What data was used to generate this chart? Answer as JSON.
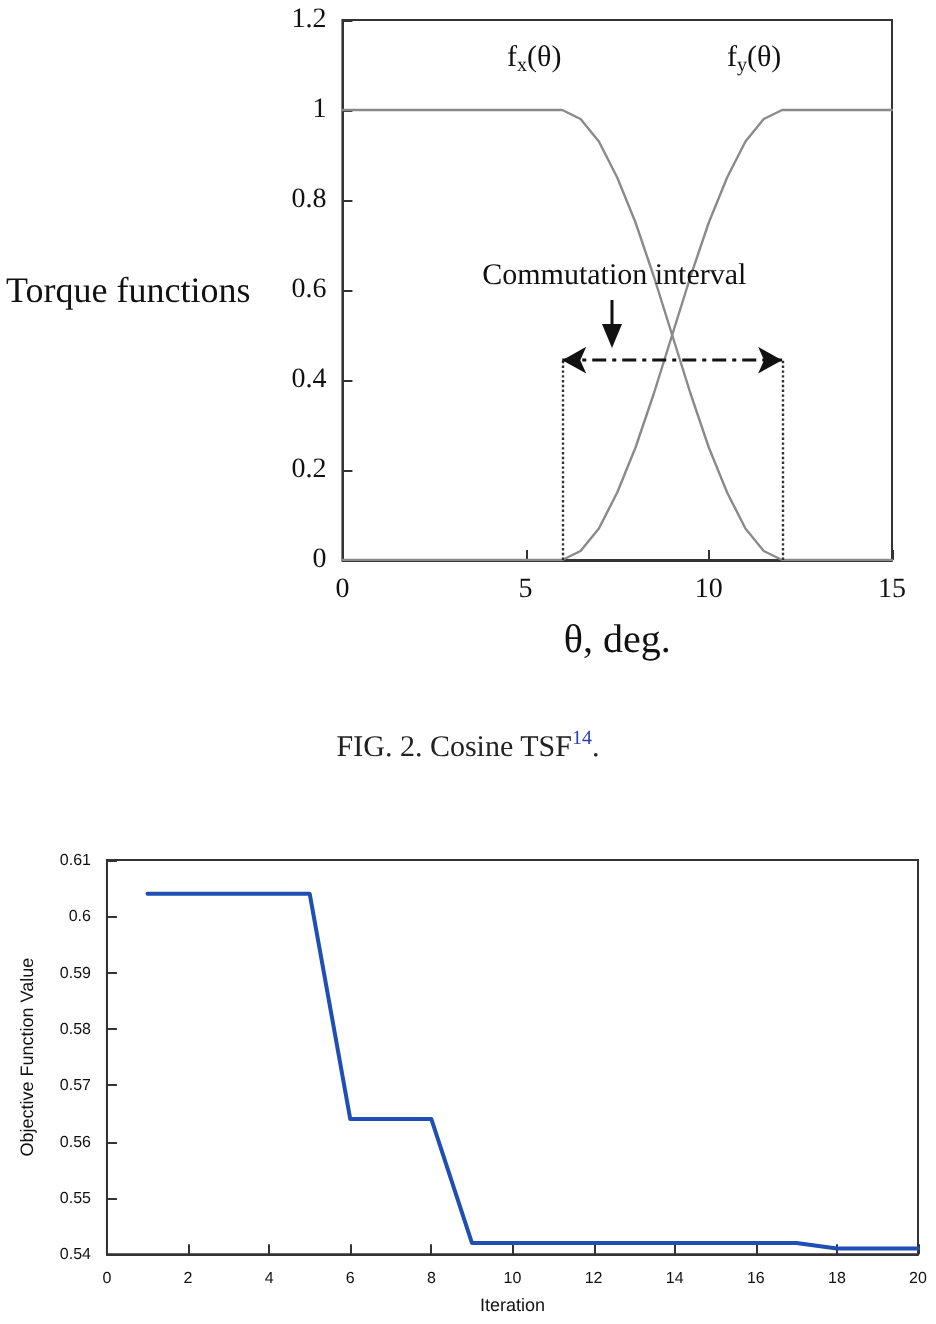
{
  "chart_data": [
    {
      "type": "line",
      "xlabel": "θ, deg.",
      "ylabel": "Torque functions",
      "x": [
        0,
        6,
        6.5,
        7,
        7.5,
        8,
        8.5,
        9,
        9.5,
        10,
        10.5,
        11,
        11.5,
        12,
        15
      ],
      "series": [
        {
          "name": "f$_{x}$(θ)",
          "color": "#8a8a8a",
          "values": [
            1,
            1,
            0.98,
            0.93,
            0.85,
            0.75,
            0.63,
            0.5,
            0.37,
            0.25,
            0.15,
            0.07,
            0.02,
            0,
            0
          ]
        },
        {
          "name": "f$_{y}$(θ)",
          "color": "#8a8a8a",
          "values": [
            0,
            0,
            0.02,
            0.07,
            0.15,
            0.25,
            0.37,
            0.5,
            0.63,
            0.75,
            0.85,
            0.93,
            0.98,
            1,
            1
          ]
        }
      ],
      "annotations": [
        "Commutation interval",
        "FIG. 2. Cosine TSF$^{14}$."
      ],
      "ref_lines": [
        {
          "axis": "x",
          "value": 6,
          "color": "#333333",
          "line_style": "dotted"
        },
        {
          "axis": "x",
          "value": 12,
          "color": "#333333",
          "line_style": "dotted"
        }
      ],
      "xlim": [
        0,
        15
      ],
      "ylim": [
        0,
        1.2
      ],
      "xticks": [
        0,
        5,
        10,
        15
      ],
      "yticks": [
        0,
        0.2,
        0.4,
        0.6,
        0.8,
        1,
        1.2
      ],
      "marker": "none",
      "line_style": "solid"
    },
    {
      "type": "line",
      "xlabel": "Iteration",
      "ylabel": "Objective Function Value",
      "x": [
        1,
        2,
        3,
        4,
        5,
        6,
        7,
        8,
        9,
        10,
        11,
        12,
        13,
        14,
        15,
        16,
        17,
        18,
        19,
        20
      ],
      "series": [
        {
          "color": "#1f4fb4",
          "values": [
            0.604,
            0.604,
            0.604,
            0.604,
            0.604,
            0.564,
            0.564,
            0.564,
            0.542,
            0.542,
            0.542,
            0.542,
            0.542,
            0.542,
            0.542,
            0.542,
            0.542,
            0.541,
            0.541,
            0.541
          ]
        }
      ],
      "xlim": [
        0,
        20
      ],
      "ylim": [
        0.54,
        0.61
      ],
      "xticks": [
        0,
        2,
        4,
        6,
        8,
        10,
        12,
        14,
        16,
        18,
        20
      ],
      "yticks": [
        0.54,
        0.55,
        0.56,
        0.57,
        0.58,
        0.59,
        0.6,
        0.61
      ],
      "marker": "none",
      "line_style": "solid"
    }
  ]
}
